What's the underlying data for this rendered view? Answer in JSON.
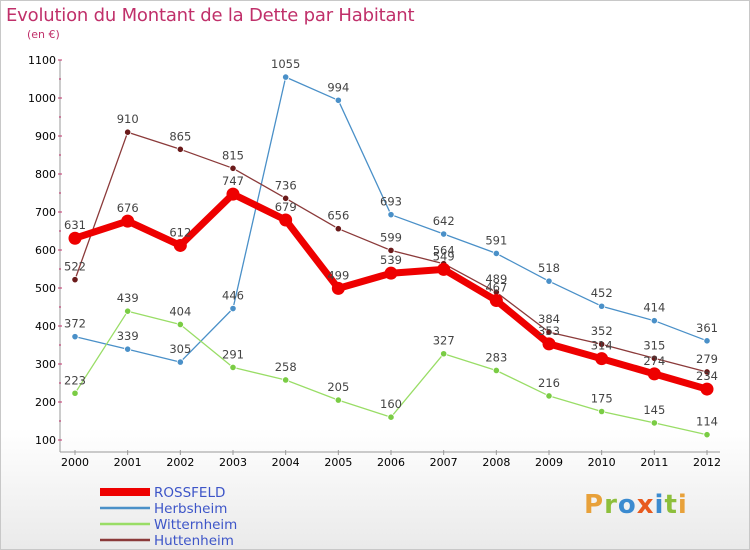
{
  "header": {
    "title": "Evolution du Montant de la Dette par Habitant",
    "subtitle": "(en €)"
  },
  "brand": {
    "letters": [
      "P",
      "r",
      "o",
      "x",
      "i",
      "t",
      "i"
    ],
    "colors": [
      "#e8a13a",
      "#8dbf3c",
      "#3b8bd0",
      "#e85a1e",
      "#3b8bd0",
      "#8dbf3c",
      "#e8a13a"
    ]
  },
  "chart_data": {
    "type": "line",
    "title": "Evolution du Montant de la Dette par Habitant",
    "ylabel": "(en €)",
    "xlabel": "",
    "categories": [
      "2000",
      "2001",
      "2002",
      "2003",
      "2004",
      "2005",
      "2006",
      "2007",
      "2008",
      "2009",
      "2010",
      "2011",
      "2012"
    ],
    "ylim": [
      100,
      1100
    ],
    "yticks": [
      100,
      200,
      300,
      400,
      500,
      600,
      700,
      800,
      900,
      1000,
      1100
    ],
    "grid": false,
    "legend_position": "bottom-left",
    "series": [
      {
        "name": "Herbsheim",
        "color": "#4a90c8",
        "marker_color": "#4a90c8",
        "values": [
          372,
          339,
          305,
          446,
          1055,
          994,
          693,
          642,
          591,
          518,
          452,
          414,
          361
        ]
      },
      {
        "name": "Witternheim",
        "color": "#99dd66",
        "marker_color": "#7acc44",
        "values": [
          223,
          439,
          404,
          291,
          258,
          205,
          160,
          327,
          283,
          216,
          175,
          145,
          114
        ]
      },
      {
        "name": "Huttenheim",
        "color": "#8b3a3a",
        "marker_color": "#6b1a1a",
        "values": [
          522,
          910,
          865,
          815,
          736,
          656,
          599,
          564,
          489,
          384,
          352,
          315,
          279
        ]
      },
      {
        "name": "ROSSFELD",
        "color": "#ee0000",
        "marker_color": "#ee0000",
        "values": [
          631,
          676,
          612,
          747,
          679,
          499,
          539,
          549,
          467,
          353,
          314,
          274,
          234
        ]
      }
    ],
    "legend_order": [
      "ROSSFELD",
      "Herbsheim",
      "Witternheim",
      "Huttenheim"
    ]
  }
}
